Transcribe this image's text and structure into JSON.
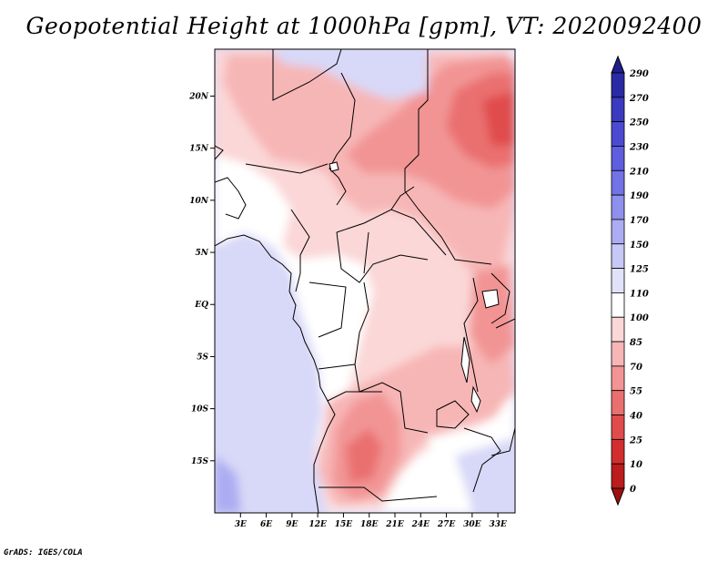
{
  "title": "Geopotential Height at 1000hPa [gpm], VT: 2020092400",
  "credit": "GrADS: IGES/COLA",
  "map": {
    "lat_labels": [
      "20N",
      "15N",
      "10N",
      "5N",
      "EQ",
      "5S",
      "10S",
      "15S"
    ],
    "lat_values": [
      20,
      15,
      10,
      5,
      0,
      -5,
      -10,
      -15
    ],
    "lon_labels": [
      "3E",
      "6E",
      "9E",
      "12E",
      "15E",
      "18E",
      "21E",
      "24E",
      "27E",
      "30E",
      "33E"
    ],
    "lon_values": [
      3,
      6,
      9,
      12,
      15,
      18,
      21,
      24,
      27,
      30,
      33
    ],
    "lon_range": [
      0,
      35
    ],
    "lat_range": [
      -20,
      24.5
    ]
  },
  "colorbar": {
    "labels": [
      "290",
      "270",
      "250",
      "230",
      "210",
      "190",
      "170",
      "150",
      "125",
      "110",
      "100",
      "85",
      "70",
      "55",
      "40",
      "25",
      "10",
      "0"
    ],
    "colors": [
      "#1e1e8c",
      "#2a2aa5",
      "#3a3ac0",
      "#4b4bd2",
      "#5e5ede",
      "#7373e6",
      "#8f8fee",
      "#acacf2",
      "#c8c8f6",
      "#e1e1fa",
      "#ffffff",
      "#fbd7d7",
      "#f7b6b6",
      "#f29494",
      "#ea7070",
      "#e04c4c",
      "#d22e2e",
      "#bb1c1c",
      "#a01010"
    ]
  },
  "colors": {
    "ocean": "#d8d8f8",
    "land_white": "#ffffff",
    "light_pink": "#fbd7d7",
    "pink": "#f7b6b6",
    "mid_red": "#f29494",
    "red": "#ea7070",
    "deep_red": "#e04c4c"
  }
}
